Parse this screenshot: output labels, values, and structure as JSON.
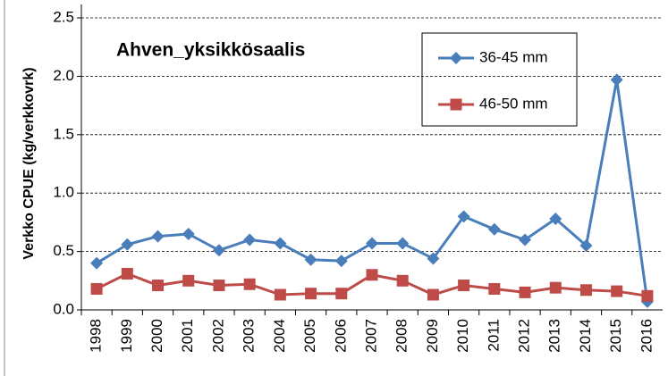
{
  "chart_data": {
    "type": "line",
    "title": "Ahven_yksikkösaalis",
    "y_label": "Verkko CPUE  (kg/verkkovrk)",
    "categories": [
      "1998",
      "1999",
      "2000",
      "2001",
      "2002",
      "2003",
      "2004",
      "2005",
      "2006",
      "2007",
      "2008",
      "2009",
      "2010",
      "2011",
      "2012",
      "2013",
      "2014",
      "2015",
      "2016"
    ],
    "series": [
      {
        "name": "36-45 mm",
        "color": "#4a7ebb",
        "marker": "diamond",
        "values": [
          0.4,
          0.56,
          0.63,
          0.65,
          0.51,
          0.6,
          0.57,
          0.43,
          0.42,
          0.57,
          0.57,
          0.44,
          0.8,
          0.69,
          0.6,
          0.78,
          0.55,
          1.97,
          0.07
        ]
      },
      {
        "name": "46-50 mm",
        "color": "#be4b48",
        "marker": "square",
        "values": [
          0.18,
          0.31,
          0.21,
          0.25,
          0.21,
          0.22,
          0.13,
          0.14,
          0.14,
          0.3,
          0.25,
          0.13,
          0.21,
          0.18,
          0.15,
          0.19,
          0.17,
          0.16,
          0.12
        ]
      }
    ],
    "ylim": [
      0,
      2.5
    ],
    "yticks": [
      {
        "value": 0,
        "label": "0.0"
      },
      0.5,
      {
        "value": 1,
        "label": "1.0"
      },
      1.5,
      {
        "value": 2,
        "label": "2.0"
      },
      2.5
    ],
    "grid": true,
    "legend": "upper right"
  }
}
